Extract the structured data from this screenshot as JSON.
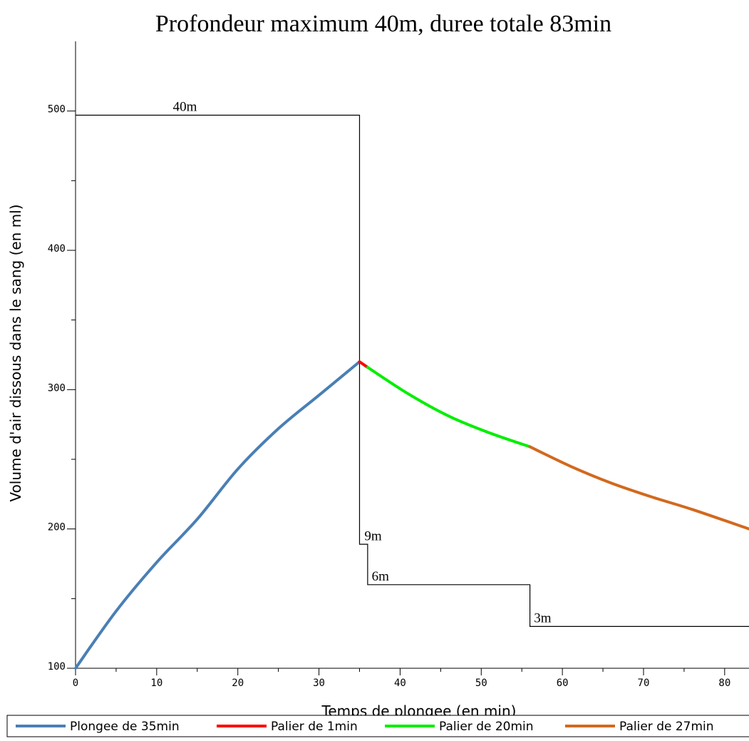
{
  "chart_data": {
    "type": "line",
    "title": "Profondeur maximum 40m, duree totale 83min",
    "xlabel": "Temps de plongee (en min)",
    "ylabel": "Volume d'air dissous dans le sang (en ml)",
    "xlim": [
      0,
      83
    ],
    "ylim": [
      100,
      550
    ],
    "x_ticks": [
      0,
      10,
      20,
      30,
      40,
      50,
      60,
      70,
      80
    ],
    "y_ticks": [
      100,
      200,
      300,
      400,
      500
    ],
    "grid": false,
    "legend_position": "bottom",
    "series": [
      {
        "name": "Plongee de 35min",
        "color": "#4a7fb5",
        "x": [
          0,
          5,
          10,
          15,
          20,
          25,
          30,
          35
        ],
        "y": [
          100,
          141,
          176,
          207,
          243,
          272,
          296,
          320
        ]
      },
      {
        "name": "Palier de 1min",
        "color": "#ff0000",
        "x": [
          35,
          36
        ],
        "y": [
          320,
          316
        ]
      },
      {
        "name": "Palier de 20min",
        "color": "#00ee00",
        "x": [
          36,
          41,
          46,
          51,
          56
        ],
        "y": [
          316,
          297,
          281,
          269,
          259
        ]
      },
      {
        "name": "Palier de 27min",
        "color": "#d2691e",
        "x": [
          56,
          61,
          66,
          71,
          76,
          83
        ],
        "y": [
          259,
          245,
          233,
          223,
          214,
          200
        ]
      }
    ],
    "depth_profile": {
      "color": "#000000",
      "x": [
        0,
        35,
        35,
        36,
        36,
        56,
        56,
        83
      ],
      "y": [
        497,
        497,
        189,
        189,
        160,
        160,
        130,
        130
      ]
    },
    "annotations": [
      {
        "text": "40m",
        "x": 12,
        "y": 500
      },
      {
        "text": "9m",
        "x": 35.6,
        "y": 192
      },
      {
        "text": "6m",
        "x": 36.5,
        "y": 163
      },
      {
        "text": "3m",
        "x": 56.5,
        "y": 133
      }
    ]
  }
}
